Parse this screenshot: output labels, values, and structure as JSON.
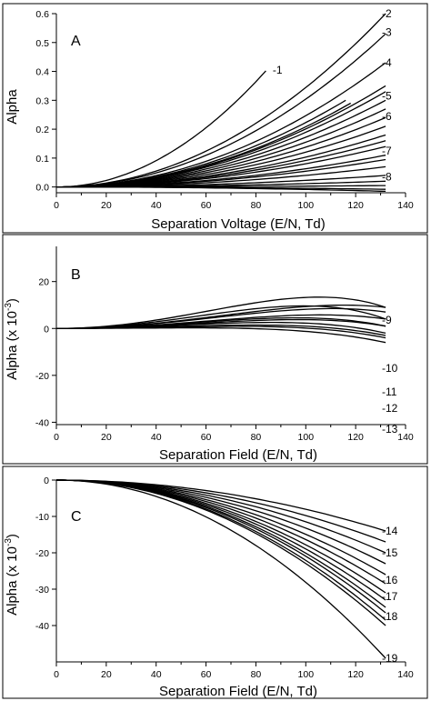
{
  "chart_data": [
    {
      "type": "line",
      "panel_letter": "A",
      "xlabel": "Separation Voltage (E/N, Td)",
      "ylabel": "Alpha",
      "ylabel_sup": "",
      "ylabel_suffix": "",
      "xlim": [
        0,
        140
      ],
      "ylim": [
        -0.02,
        0.6
      ],
      "xticks": [
        0,
        20,
        40,
        60,
        80,
        100,
        120,
        140
      ],
      "yticks": [
        0.0,
        0.1,
        0.2,
        0.3,
        0.4,
        0.5,
        0.6
      ],
      "ytick_labels": [
        "0.0",
        "0.1",
        "0.2",
        "0.3",
        "0.4",
        "0.5",
        "0.6"
      ],
      "series": [
        {
          "label": "-1",
          "x_end": 84,
          "a2": 0.402,
          "a4": 0.0,
          "label_x": 86,
          "label_y": 0.405
        },
        {
          "x_end": 116,
          "a2": 0.3,
          "a4": 0.0
        },
        {
          "x_end": 118,
          "a2": 0.29,
          "a4": 0.0
        },
        {
          "label": "-2",
          "x_end": 132,
          "a2": 0.6,
          "a4": 0.0,
          "label_y": 0.6
        },
        {
          "label": "-3",
          "x_end": 132,
          "a2": 0.53,
          "a4": 0.0,
          "label_y": 0.535
        },
        {
          "label": "-4",
          "x_end": 132,
          "a2": 0.43,
          "a4": 0.0,
          "label_y": 0.43
        },
        {
          "x_end": 132,
          "a2": 0.35,
          "a4": 0.0
        },
        {
          "label": "-5",
          "x_end": 132,
          "a2": 0.33,
          "a4": 0.0,
          "label_y": 0.315
        },
        {
          "x_end": 132,
          "a2": 0.3,
          "a4": 0.0
        },
        {
          "label": "-6",
          "x_end": 132,
          "a2": 0.27,
          "a4": 0.0,
          "label_y": 0.245
        },
        {
          "x_end": 132,
          "a2": 0.24,
          "a4": 0.0
        },
        {
          "x_end": 132,
          "a2": 0.21,
          "a4": 0.0
        },
        {
          "x_end": 132,
          "a2": 0.18,
          "a4": 0.0
        },
        {
          "x_end": 132,
          "a2": 0.16,
          "a4": 0.0
        },
        {
          "x_end": 132,
          "a2": 0.14,
          "a4": 0.0
        },
        {
          "label": "-7",
          "x_end": 132,
          "a2": 0.11,
          "a4": 0.0,
          "label_y": 0.125
        },
        {
          "x_end": 132,
          "a2": 0.095,
          "a4": 0.0
        },
        {
          "x_end": 132,
          "a2": 0.07,
          "a4": 0.0
        },
        {
          "x_end": 132,
          "a2": 0.04,
          "a4": 0.0
        },
        {
          "label": "-8",
          "x_end": 132,
          "a2": 0.02,
          "a4": 0.0,
          "label_y": 0.035
        },
        {
          "x_end": 132,
          "a2": 0.005,
          "a4": 0.0
        },
        {
          "x_end": 132,
          "a2": -0.008,
          "a4": 0.0
        },
        {
          "x_end": 132,
          "a2": -0.015,
          "a4": 0.0
        }
      ]
    },
    {
      "type": "line",
      "panel_letter": "B",
      "xlabel": "Separation Field (E/N, Td)",
      "ylabel": "Alpha (x 10",
      "ylabel_sup": "-3",
      "ylabel_suffix": ")",
      "xlim": [
        0,
        140
      ],
      "ylim": [
        -41,
        35
      ],
      "xticks": [
        0,
        20,
        40,
        60,
        80,
        100,
        120,
        140
      ],
      "yticks": [
        -40,
        -20,
        0,
        20
      ],
      "ytick_labels": [
        "-40",
        "-20",
        "0",
        "20"
      ],
      "series": [
        {
          "x_end": 132,
          "a2": 42,
          "a4": -33
        },
        {
          "label": "-9",
          "x_end": 132,
          "a2": 26,
          "a4": -17,
          "label_y": 3.5
        },
        {
          "x_end": 132,
          "a2": 34,
          "a4": -30
        },
        {
          "x_end": 132,
          "a2": 24,
          "a4": -17
        },
        {
          "label": "-10",
          "x_end": 132,
          "a2": 18,
          "a4": -14,
          "label_y": -17
        },
        {
          "x_end": 132,
          "a2": 17,
          "a4": -16
        },
        {
          "label": "-11",
          "x_end": 132,
          "a2": 14,
          "a4": -13,
          "label_y": -27
        },
        {
          "x_end": 132,
          "a2": 12,
          "a4": -14
        },
        {
          "label": "-12",
          "x_end": 132,
          "a2": 8,
          "a4": -11,
          "label_y": -34
        },
        {
          "x_end": 132,
          "a2": 6,
          "a4": -10
        },
        {
          "label": "-13",
          "x_end": 132,
          "a2": 3,
          "a4": -9,
          "label_y": -43
        }
      ]
    },
    {
      "type": "line",
      "panel_letter": "C",
      "xlabel": "Separation Field (E/N, Td)",
      "ylabel": "Alpha (x 10",
      "ylabel_sup": "-3",
      "ylabel_suffix": ")",
      "xlim": [
        0,
        140
      ],
      "ylim": [
        -50,
        0
      ],
      "xticks": [
        0,
        20,
        40,
        60,
        80,
        100,
        120,
        140
      ],
      "yticks": [
        -40,
        -30,
        -20,
        -10,
        0
      ],
      "ytick_labels": [
        "-40",
        "-30",
        "-20",
        "-10",
        "0"
      ],
      "series": [
        {
          "label": "-14",
          "x_end": 132,
          "a2": -14,
          "a4": 0,
          "label_y": -14
        },
        {
          "x_end": 132,
          "a2": -17,
          "a4": 0
        },
        {
          "label": "-15",
          "x_end": 132,
          "a2": -20,
          "a4": 0,
          "label_y": -20
        },
        {
          "x_end": 132,
          "a2": -23,
          "a4": 0
        },
        {
          "x_end": 132,
          "a2": -26,
          "a4": 0
        },
        {
          "label": "-16",
          "x_end": 132,
          "a2": -28.5,
          "a4": 0,
          "label_y": -27.5
        },
        {
          "x_end": 132,
          "a2": -31,
          "a4": 0
        },
        {
          "label": "-17",
          "x_end": 132,
          "a2": -33,
          "a4": 0,
          "label_y": -32
        },
        {
          "x_end": 132,
          "a2": -35,
          "a4": 0
        },
        {
          "x_end": 132,
          "a2": -36.5,
          "a4": 0
        },
        {
          "label": "-18",
          "x_end": 132,
          "a2": -38.5,
          "a4": 0,
          "label_y": -37.5
        },
        {
          "x_end": 132,
          "a2": -40,
          "a4": 0
        },
        {
          "label": "-19",
          "x_end": 132,
          "a2": -49,
          "a4": 0,
          "label_y": -49
        }
      ]
    }
  ]
}
